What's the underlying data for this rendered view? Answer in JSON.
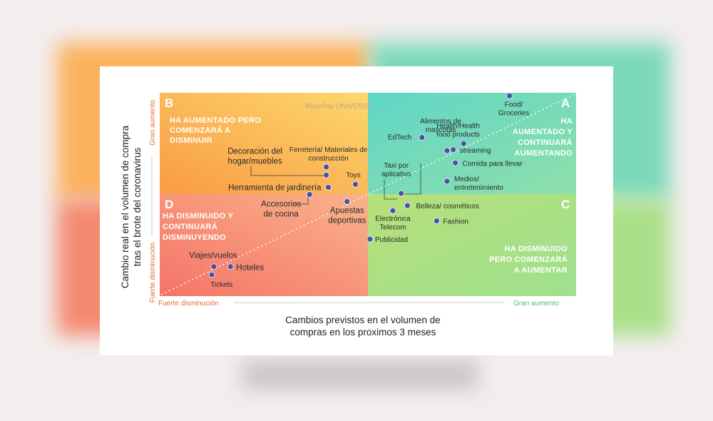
{
  "chart_data": {
    "type": "scatter",
    "title": "",
    "xlabel": "Cambios previstos en el volumen de compras en los proximos 3 meses",
    "xlabel_lines": [
      "Cambios previstos en el volumen de",
      "compras en los proximos 3 meses"
    ],
    "ylabel": "Cambio real en el volumen de compra tras el brote del coronavirus",
    "ylabel_lines": [
      "Cambio real en el volumen de compra",
      "tras el brote del coronavirus"
    ],
    "x_axis": {
      "low": "Fuerte disminución",
      "high": "Gran aumento"
    },
    "y_axis": {
      "low": "Fuerte disminución",
      "high": "Gran aumento"
    },
    "xlim": [
      -1,
      1
    ],
    "ylim": [
      -1,
      1
    ],
    "watermark": "RiverPay UNIVERSE",
    "quadrants": [
      {
        "letter": "A",
        "lines": [
          "HA",
          "AUMENTADO Y",
          "CONTINUARÁ",
          "AUMENTANDO"
        ],
        "color": "#6ed9bf"
      },
      {
        "letter": "B",
        "lines": [
          "HA AUMENTADO PERO",
          "COMENZARÁ A",
          "DISMINUIR"
        ],
        "color": "#fdb656"
      },
      {
        "letter": "C",
        "lines": [
          "HA DISMINUIDO",
          "PERO COMENZARÁ",
          "A AUMENTAR"
        ],
        "color": "#a8e07e"
      },
      {
        "letter": "D",
        "lines": [
          "HA DISMINUIDO Y",
          "CONTINUARÁ",
          "DISMINUYENDO"
        ],
        "color": "#f48c74"
      }
    ],
    "points": [
      {
        "label": [
          "Food/",
          "Groceries"
        ],
        "x": 0.68,
        "y": 0.97
      },
      {
        "label": [
          "EdTech"
        ],
        "x": 0.26,
        "y": 0.56
      },
      {
        "label": [
          "Health/Health",
          "food products"
        ],
        "x": 0.46,
        "y": 0.5
      },
      {
        "label": [
          "Alimentos de",
          "mascotas"
        ],
        "x": 0.38,
        "y": 0.43
      },
      {
        "label": [
          "streaming"
        ],
        "x": 0.41,
        "y": 0.44
      },
      {
        "label": [
          "Comida para llevar"
        ],
        "x": 0.42,
        "y": 0.31
      },
      {
        "label": [
          "Medios/",
          "entretenimiento"
        ],
        "x": 0.38,
        "y": 0.13
      },
      {
        "label": [
          "Taxi por",
          "aplicativo"
        ],
        "x": 0.16,
        "y": 0.01
      },
      {
        "label": [
          "Belleza/ cosméticos"
        ],
        "x": 0.19,
        "y": -0.11
      },
      {
        "label": [
          "Electrónica",
          "Telecom"
        ],
        "x": 0.12,
        "y": -0.16
      },
      {
        "label": [
          "Fashion"
        ],
        "x": 0.33,
        "y": -0.26
      },
      {
        "label": [
          "Publicidad"
        ],
        "x": 0.01,
        "y": -0.44
      },
      {
        "label": [
          "Toys"
        ],
        "x": -0.06,
        "y": 0.1
      },
      {
        "label": [
          "Ferretería/ Materiales de",
          "construcción"
        ],
        "x": -0.2,
        "y": 0.27
      },
      {
        "label": [
          "Decoración del",
          "hogar/muebles"
        ],
        "x": -0.2,
        "y": 0.19
      },
      {
        "label": [
          "Herramienta de jardinería"
        ],
        "x": -0.19,
        "y": 0.07
      },
      {
        "label": [
          "Accesorios",
          "de cocina"
        ],
        "x": -0.28,
        "y": 0.0
      },
      {
        "label": [
          "Apuestas",
          "deportivas"
        ],
        "x": -0.1,
        "y": -0.07
      },
      {
        "label": [
          "Viajes/vuelos"
        ],
        "x": -0.74,
        "y": -0.71
      },
      {
        "label": [
          "Hoteles"
        ],
        "x": -0.66,
        "y": -0.71
      },
      {
        "label": [
          "Tickets"
        ],
        "x": -0.75,
        "y": -0.79
      }
    ]
  },
  "colors": {
    "quad_a": "#6ed9bf",
    "quad_b": "#fdb656",
    "quad_c": "#a8e07e",
    "quad_d": "#f48c74",
    "dot": "#4b4fa8",
    "axis_low": "#e46a3c",
    "axis_high": "#5fb86a"
  }
}
